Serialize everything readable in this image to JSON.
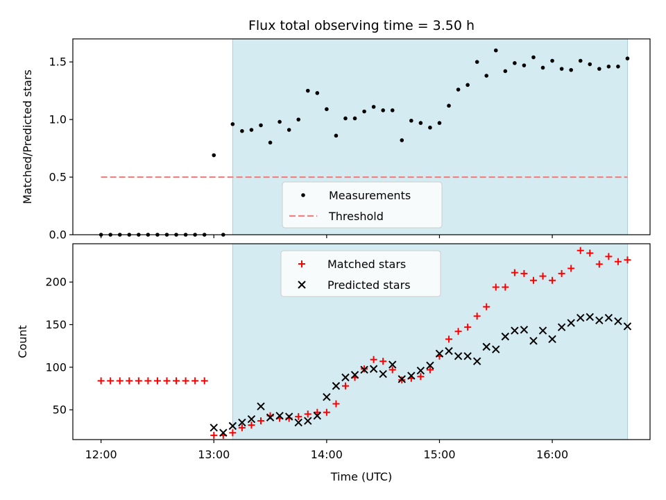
{
  "chart_data": [
    {
      "type": "scatter",
      "title": "Flux total observing time = 3.50 h",
      "xlabel": "",
      "ylabel": "Matched/Predicted stars",
      "xlim": [
        "11:45",
        "16:52"
      ],
      "ylim": [
        0,
        1.7
      ],
      "yticks": [
        0.0,
        0.5,
        1.0,
        1.5
      ],
      "ytick_labels": [
        "0.0",
        "0.5",
        "1.0",
        "1.5"
      ],
      "xticks": [
        "12:00",
        "13:00",
        "14:00",
        "15:00",
        "16:00"
      ],
      "xtick_labels_shown": false,
      "shaded_region": {
        "x_start": "13:10",
        "x_end": "16:40",
        "color": "#d4ebf1"
      },
      "threshold": {
        "value": 0.5,
        "x_start": "12:00",
        "x_end": "16:40",
        "color": "#f08080"
      },
      "legend": {
        "position": "bottom-center",
        "entries": [
          "Measurements",
          "Threshold"
        ]
      },
      "series": [
        {
          "name": "Measurements",
          "marker": "dot",
          "color": "#000000",
          "x": [
            "12:00",
            "12:05",
            "12:10",
            "12:15",
            "12:20",
            "12:25",
            "12:30",
            "12:35",
            "12:40",
            "12:45",
            "12:50",
            "12:55",
            "13:00",
            "13:05",
            "13:10",
            "13:15",
            "13:20",
            "13:25",
            "13:30",
            "13:35",
            "13:40",
            "13:45",
            "13:50",
            "13:55",
            "14:00",
            "14:05",
            "14:10",
            "14:15",
            "14:20",
            "14:25",
            "14:30",
            "14:35",
            "14:40",
            "14:45",
            "14:50",
            "14:55",
            "15:00",
            "15:05",
            "15:10",
            "15:15",
            "15:20",
            "15:25",
            "15:30",
            "15:35",
            "15:40",
            "15:45",
            "15:50",
            "15:55",
            "16:00",
            "16:05",
            "16:10",
            "16:15",
            "16:20",
            "16:25",
            "16:30",
            "16:35",
            "16:40"
          ],
          "y": [
            0,
            0,
            0,
            0,
            0,
            0,
            0,
            0,
            0,
            0,
            0,
            0,
            0.69,
            0,
            0.96,
            0.9,
            0.91,
            0.95,
            0.8,
            0.98,
            0.91,
            1.0,
            1.25,
            1.23,
            1.09,
            0.86,
            1.01,
            1.01,
            1.07,
            1.11,
            1.08,
            1.08,
            0.82,
            0.99,
            0.97,
            0.93,
            0.97,
            1.12,
            1.26,
            1.3,
            1.5,
            1.38,
            1.6,
            1.42,
            1.49,
            1.47,
            1.54,
            1.45,
            1.51,
            1.44,
            1.43,
            1.51,
            1.48,
            1.44,
            1.46,
            1.46,
            1.53
          ]
        }
      ]
    },
    {
      "type": "scatter",
      "title": "",
      "xlabel": "Time (UTC)",
      "ylabel": "Count",
      "xlim": [
        "11:45",
        "16:52"
      ],
      "ylim": [
        15,
        245
      ],
      "yticks": [
        50,
        100,
        150,
        200
      ],
      "ytick_labels": [
        "50",
        "100",
        "150",
        "200"
      ],
      "xticks": [
        "12:00",
        "13:00",
        "14:00",
        "15:00",
        "16:00"
      ],
      "xtick_labels": [
        "12:00",
        "13:00",
        "14:00",
        "15:00",
        "16:00"
      ],
      "shaded_region": {
        "x_start": "13:10",
        "x_end": "16:40",
        "color": "#d4ebf1"
      },
      "legend": {
        "position": "top-center",
        "entries": [
          "Matched stars",
          "Predicted stars"
        ]
      },
      "series": [
        {
          "name": "Matched stars",
          "marker": "plus",
          "color": "#ff0000",
          "x": [
            "12:00",
            "12:05",
            "12:10",
            "12:15",
            "12:20",
            "12:25",
            "12:30",
            "12:35",
            "12:40",
            "12:45",
            "12:50",
            "12:55",
            "13:00",
            "13:05",
            "13:10",
            "13:15",
            "13:20",
            "13:25",
            "13:30",
            "13:35",
            "13:40",
            "13:45",
            "13:50",
            "13:55",
            "14:00",
            "14:05",
            "14:10",
            "14:15",
            "14:20",
            "14:25",
            "14:30",
            "14:35",
            "14:40",
            "14:45",
            "14:50",
            "14:55",
            "15:00",
            "15:05",
            "15:10",
            "15:15",
            "15:20",
            "15:25",
            "15:30",
            "15:35",
            "15:40",
            "15:45",
            "15:50",
            "15:55",
            "16:00",
            "16:05",
            "16:10",
            "16:15",
            "16:20",
            "16:25",
            "16:30",
            "16:35",
            "16:40"
          ],
          "y": [
            84,
            84,
            84,
            84,
            84,
            84,
            84,
            84,
            84,
            84,
            84,
            84,
            20,
            20,
            23,
            29,
            32,
            37,
            43,
            40,
            40,
            42,
            45,
            47,
            47,
            57,
            78,
            88,
            98,
            109,
            107,
            97,
            85,
            87,
            89,
            97,
            113,
            133,
            142,
            147,
            160,
            171,
            194,
            194,
            211,
            210,
            202,
            207,
            202,
            210,
            216,
            237,
            234,
            221,
            230,
            224,
            226
          ]
        },
        {
          "name": "Predicted stars",
          "marker": "x",
          "color": "#000000",
          "x": [
            "13:00",
            "13:05",
            "13:10",
            "13:15",
            "13:20",
            "13:25",
            "13:30",
            "13:35",
            "13:40",
            "13:45",
            "13:50",
            "13:55",
            "14:00",
            "14:05",
            "14:10",
            "14:15",
            "14:20",
            "14:25",
            "14:30",
            "14:35",
            "14:40",
            "14:45",
            "14:50",
            "14:55",
            "15:00",
            "15:05",
            "15:10",
            "15:15",
            "15:20",
            "15:25",
            "15:30",
            "15:35",
            "15:40",
            "15:45",
            "15:50",
            "15:55",
            "16:00",
            "16:05",
            "16:10",
            "16:15",
            "16:20",
            "16:25",
            "16:30",
            "16:35",
            "16:40"
          ],
          "y": [
            29,
            23,
            31,
            35,
            39,
            54,
            41,
            43,
            42,
            35,
            37,
            43,
            65,
            78,
            88,
            91,
            97,
            98,
            92,
            103,
            86,
            90,
            96,
            102,
            116,
            119,
            113,
            113,
            107,
            124,
            121,
            136,
            143,
            144,
            131,
            143,
            133,
            147,
            152,
            158,
            159,
            155,
            158,
            154,
            148
          ]
        }
      ]
    }
  ]
}
